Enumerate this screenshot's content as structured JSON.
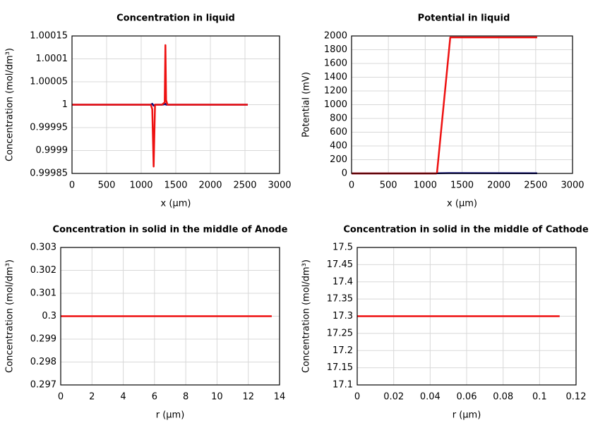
{
  "chart_data": [
    {
      "type": "line",
      "title": "Concentration in liquid",
      "xlabel": "x (µm)",
      "ylabel": "Concentration (mol/dm³)",
      "x": [
        0,
        1100,
        1140,
        1160,
        1180,
        1200,
        1300,
        1340,
        1350,
        1360,
        1380,
        2540
      ],
      "series": [
        {
          "name": "blue",
          "color": "#0b0b7a",
          "values": [
            1,
            1,
            1,
            1.000002,
            0.999998,
            1,
            1,
            1.000001,
            1.000002,
            1,
            1,
            1
          ]
        },
        {
          "name": "red",
          "color": "#ee1111",
          "values": [
            1,
            1,
            1,
            0.99999,
            0.999865,
            1,
            1,
            1.000005,
            1.00013,
            1.00001,
            1,
            1
          ]
        }
      ],
      "xlim": [
        0,
        3000
      ],
      "ylim": [
        0.99985,
        1.00015
      ],
      "xticks": [
        0,
        500,
        1000,
        1500,
        2000,
        2500,
        3000
      ],
      "yticks": [
        0.99985,
        0.9999,
        0.99995,
        1,
        1.00005,
        1.0001,
        1.00015
      ],
      "grid": true
    },
    {
      "type": "line",
      "title": "Potential in liquid",
      "xlabel": "x (µm)",
      "ylabel": "Potential (mV)",
      "x": [
        0,
        1150,
        1160,
        1340,
        2520
      ],
      "series": [
        {
          "name": "blue",
          "color": "#0b0b7a",
          "values": [
            0,
            0,
            2,
            5,
            3
          ]
        },
        {
          "name": "red",
          "color": "#ee1111",
          "values": [
            0,
            0,
            10,
            1980,
            1980
          ]
        }
      ],
      "xlim": [
        0,
        3000
      ],
      "ylim": [
        0,
        2000
      ],
      "xticks": [
        0,
        500,
        1000,
        1500,
        2000,
        2500,
        3000
      ],
      "yticks": [
        0,
        200,
        400,
        600,
        800,
        1000,
        1200,
        1400,
        1600,
        1800,
        2000
      ],
      "grid": true
    },
    {
      "type": "line",
      "title": "Concentration in solid in the middle of Anode",
      "xlabel": "r (µm)",
      "ylabel": "Concentration (mol/dm³)",
      "x": [
        0,
        13.5
      ],
      "series": [
        {
          "name": "red",
          "color": "#ee1111",
          "values": [
            0.3,
            0.3
          ]
        }
      ],
      "xlim": [
        0,
        14
      ],
      "ylim": [
        0.297,
        0.303
      ],
      "xticks": [
        0,
        2,
        4,
        6,
        8,
        10,
        12,
        14
      ],
      "yticks": [
        0.297,
        0.298,
        0.299,
        0.3,
        0.301,
        0.302,
        0.303
      ],
      "grid": true
    },
    {
      "type": "line",
      "title": "Concentration in solid in the middle of Cathode",
      "xlabel": "r (µm)",
      "ylabel": "Concentration (mol/dm³)",
      "x": [
        0,
        0.111
      ],
      "series": [
        {
          "name": "red",
          "color": "#ee1111",
          "values": [
            17.3,
            17.3
          ]
        }
      ],
      "xlim": [
        0,
        0.12
      ],
      "ylim": [
        17.1,
        17.5
      ],
      "xticks": [
        0,
        0.02,
        0.04,
        0.06,
        0.08,
        0.1,
        0.12
      ],
      "yticks": [
        17.1,
        17.15,
        17.2,
        17.25,
        17.3,
        17.35,
        17.4,
        17.45,
        17.5
      ],
      "grid": true
    }
  ]
}
